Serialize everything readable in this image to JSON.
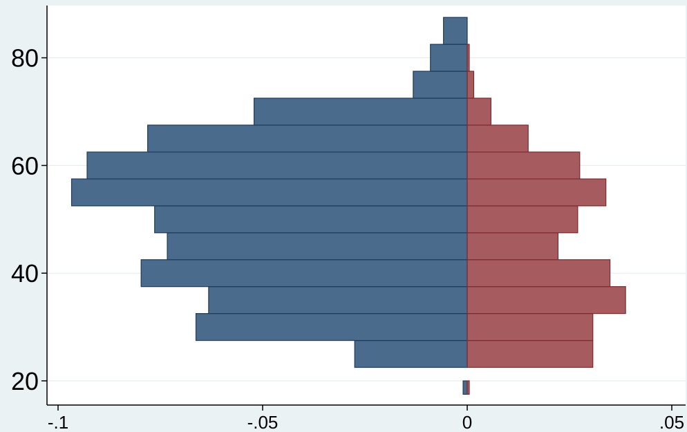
{
  "chart_data": {
    "type": "bar",
    "orientation": "horizontal",
    "title": "",
    "xlabel": "",
    "ylabel": "",
    "xlim": [
      -0.1,
      0.05
    ],
    "ylim": [
      18,
      88
    ],
    "grid": true,
    "x_ticks": [
      {
        "value": -0.1,
        "label": "-.1"
      },
      {
        "value": -0.05,
        "label": "-.05"
      },
      {
        "value": 0,
        "label": "0"
      },
      {
        "value": 0.05,
        "label": ".05"
      }
    ],
    "y_ticks": [
      {
        "value": 20,
        "label": "20"
      },
      {
        "value": 40,
        "label": "40"
      },
      {
        "value": 60,
        "label": "60"
      },
      {
        "value": 80,
        "label": "80"
      }
    ],
    "bin_width": 5,
    "series": [
      {
        "fill": "#4a6b8c",
        "edge": "#1f3a5a",
        "bins": [
          {
            "start": 17.5,
            "end": 20.0,
            "value": -0.001
          },
          {
            "start": 22.5,
            "end": 27.5,
            "value": -0.0275
          },
          {
            "start": 27.5,
            "end": 32.5,
            "value": -0.0663
          },
          {
            "start": 32.5,
            "end": 37.5,
            "value": -0.0632
          },
          {
            "start": 37.5,
            "end": 42.5,
            "value": -0.0797
          },
          {
            "start": 42.5,
            "end": 47.5,
            "value": -0.0733
          },
          {
            "start": 47.5,
            "end": 52.5,
            "value": -0.0764
          },
          {
            "start": 52.5,
            "end": 57.5,
            "value": -0.0967
          },
          {
            "start": 57.5,
            "end": 62.5,
            "value": -0.0929
          },
          {
            "start": 62.5,
            "end": 67.5,
            "value": -0.0781
          },
          {
            "start": 67.5,
            "end": 72.5,
            "value": -0.0521
          },
          {
            "start": 72.5,
            "end": 77.5,
            "value": -0.0132
          },
          {
            "start": 77.5,
            "end": 82.5,
            "value": -0.009
          },
          {
            "start": 82.5,
            "end": 87.5,
            "value": -0.0058
          }
        ]
      },
      {
        "fill": "#a65c5e",
        "edge": "#7a2a30",
        "bins": [
          {
            "start": 17.5,
            "end": 20.0,
            "value": 0.0005
          },
          {
            "start": 22.5,
            "end": 27.5,
            "value": 0.0307
          },
          {
            "start": 27.5,
            "end": 32.5,
            "value": 0.0307
          },
          {
            "start": 32.5,
            "end": 37.5,
            "value": 0.0387
          },
          {
            "start": 37.5,
            "end": 42.5,
            "value": 0.0349
          },
          {
            "start": 42.5,
            "end": 47.5,
            "value": 0.0222
          },
          {
            "start": 47.5,
            "end": 52.5,
            "value": 0.027
          },
          {
            "start": 52.5,
            "end": 57.5,
            "value": 0.0339
          },
          {
            "start": 57.5,
            "end": 62.5,
            "value": 0.0275
          },
          {
            "start": 62.5,
            "end": 67.5,
            "value": 0.0149
          },
          {
            "start": 67.5,
            "end": 72.5,
            "value": 0.0058
          },
          {
            "start": 72.5,
            "end": 77.5,
            "value": 0.0016
          },
          {
            "start": 77.5,
            "end": 82.5,
            "value": 0.0005
          }
        ]
      }
    ]
  }
}
